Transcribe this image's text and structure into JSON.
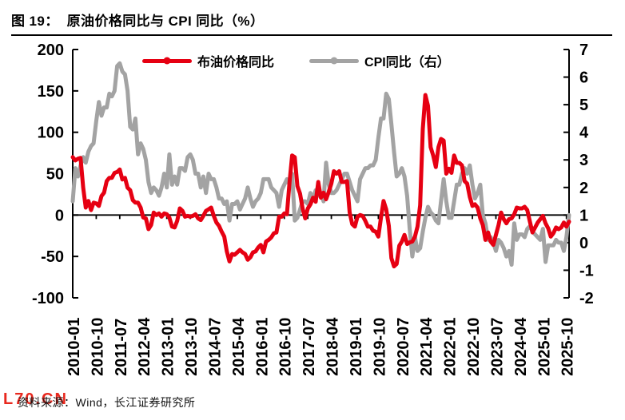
{
  "figure": {
    "label": "图  19：",
    "title": "原油价格同比与 CPI 同比（%）"
  },
  "legend": {
    "brent": "布油价格同比",
    "cpi": "CPI同比（右）"
  },
  "footer": {
    "watermark": "L70.CN",
    "source": "资料来源：Wind，长江证券研究所"
  },
  "colors": {
    "brent_red": "#e60012",
    "cpi_gray": "#a3a3a3",
    "watermark_red": "#e8281e",
    "axis_black": "#000000"
  },
  "chart_data": {
    "type": "line",
    "title": "原油价格同比与 CPI 同比（%）",
    "x_start": "2010-01",
    "x_frequency": "monthly",
    "x_tick_labels": [
      "2010-01",
      "2010-10",
      "2011-07",
      "2012-04",
      "2013-01",
      "2013-10",
      "2014-07",
      "2015-04",
      "2016-01",
      "2016-10",
      "2017-07",
      "2018-04",
      "2019-01",
      "2019-10",
      "2020-07",
      "2021-04",
      "2022-01",
      "2022-10",
      "2023-07",
      "2024-04",
      "2025-01",
      "2025-10"
    ],
    "x_tick_indices": [
      0,
      9,
      18,
      27,
      36,
      45,
      54,
      63,
      72,
      81,
      90,
      99,
      108,
      117,
      126,
      135,
      144,
      153,
      162,
      171,
      180,
      189
    ],
    "left_axis": {
      "min": -100,
      "max": 200,
      "ticks": [
        200,
        150,
        100,
        50,
        0,
        -50,
        -100
      ]
    },
    "right_axis": {
      "min": -2,
      "max": 7,
      "ticks": [
        7,
        6,
        5,
        4,
        3,
        2,
        1,
        0,
        -1,
        -2
      ]
    },
    "grid": false,
    "legend_position": "top-center",
    "series": [
      {
        "name": "布油价格同比",
        "axis": "left",
        "color": "#e60012",
        "values": [
          70,
          66,
          68,
          69,
          33,
          9,
          17,
          6,
          15,
          14,
          11,
          23,
          27,
          41,
          45,
          45,
          51,
          52,
          55,
          43,
          45,
          33,
          30,
          18,
          15,
          15,
          9,
          -3,
          -4,
          -17,
          -12,
          3,
          0,
          2,
          -2,
          2,
          1,
          -3,
          -14,
          -15,
          -7,
          8,
          5,
          -2,
          -1,
          -2,
          -1,
          1,
          -4,
          -6,
          -1,
          5,
          7,
          9,
          -1,
          -9,
          -13,
          -20,
          -26,
          -44,
          -56,
          -47,
          -48,
          -45,
          -42,
          -45,
          -47,
          -54,
          -51,
          -45,
          -44,
          -39,
          -36,
          -45,
          -32,
          -30,
          -27,
          -22,
          -21,
          -2,
          -2,
          2,
          1,
          40,
          72,
          70,
          35,
          26,
          8,
          -4,
          8,
          13,
          21,
          16,
          40,
          21,
          27,
          19,
          28,
          38,
          53,
          50,
          53,
          40,
          40,
          41,
          3,
          -11,
          -14,
          -2,
          0,
          -1,
          -7,
          -14,
          -14,
          -19,
          -20,
          -26,
          -3,
          17,
          7,
          -13,
          -52,
          -62,
          -59,
          -37,
          -32,
          -24,
          -35,
          -33,
          -32,
          -26,
          -14,
          12,
          104,
          145,
          132,
          82,
          72,
          58,
          82,
          92,
          90,
          50,
          56,
          51,
          72,
          63,
          63,
          60,
          41,
          38,
          22,
          11,
          13,
          9,
          -4,
          -12,
          -30,
          -21,
          -32,
          -36,
          -24,
          -12,
          3,
          -5,
          -10,
          -5,
          -4,
          1,
          9,
          8,
          8,
          10,
          6,
          -8,
          -21,
          -15,
          -9,
          -5,
          -1,
          -10,
          -16,
          -26,
          -22,
          -15,
          -17,
          -15,
          -9,
          -14,
          -8
        ]
      },
      {
        "name": "CPI同比（右）",
        "axis": "right",
        "color": "#a3a3a3",
        "values": [
          1.5,
          2.7,
          2.4,
          2.8,
          3.1,
          2.9,
          3.3,
          3.5,
          3.6,
          4.4,
          5.1,
          4.6,
          4.9,
          4.9,
          5.4,
          5.3,
          5.5,
          6.4,
          6.5,
          6.2,
          6.1,
          5.5,
          4.2,
          4.1,
          4.5,
          3.2,
          3.6,
          3.4,
          3.0,
          2.2,
          1.8,
          2.0,
          1.9,
          1.7,
          2.0,
          2.5,
          2.0,
          3.2,
          2.1,
          2.4,
          2.1,
          2.7,
          2.7,
          2.6,
          3.1,
          3.2,
          3.0,
          2.5,
          2.5,
          2.0,
          2.4,
          1.8,
          2.5,
          2.3,
          2.3,
          2.0,
          1.6,
          1.6,
          1.4,
          1.5,
          0.8,
          1.4,
          1.4,
          1.5,
          1.2,
          1.4,
          1.6,
          2.0,
          1.6,
          1.3,
          1.5,
          1.6,
          1.8,
          2.3,
          2.3,
          2.3,
          2.0,
          1.9,
          1.8,
          1.3,
          1.9,
          2.1,
          2.3,
          2.1,
          2.5,
          0.8,
          0.9,
          1.2,
          1.5,
          1.5,
          1.4,
          1.8,
          1.6,
          1.9,
          1.7,
          1.8,
          1.5,
          2.9,
          2.1,
          1.8,
          1.8,
          1.9,
          2.1,
          2.3,
          2.5,
          2.5,
          2.2,
          1.9,
          1.7,
          1.5,
          2.3,
          2.5,
          2.7,
          2.7,
          2.8,
          2.8,
          3.0,
          3.8,
          4.5,
          4.5,
          5.4,
          5.2,
          4.3,
          3.3,
          2.4,
          2.5,
          2.7,
          2.4,
          1.7,
          0.5,
          -0.5,
          0.2,
          -0.3,
          -0.2,
          0.4,
          0.9,
          1.3,
          1.1,
          1.0,
          0.8,
          0.7,
          1.5,
          2.3,
          1.5,
          0.9,
          0.9,
          1.5,
          2.1,
          2.1,
          2.5,
          2.7,
          2.5,
          2.8,
          2.1,
          1.6,
          1.8,
          2.1,
          1.0,
          0.7,
          0.1,
          0.2,
          0.0,
          -0.3,
          0.1,
          0.0,
          -0.2,
          -0.5,
          -0.3,
          -0.8,
          0.7,
          0.1,
          0.3,
          0.3,
          0.2,
          0.5,
          0.6,
          0.4,
          0.3,
          0.2,
          0.1,
          0.5,
          -0.7,
          -0.1,
          -0.1,
          -0.1,
          0.1,
          0.0,
          0.0,
          -0.3,
          0.2,
          1.0
        ]
      }
    ]
  }
}
